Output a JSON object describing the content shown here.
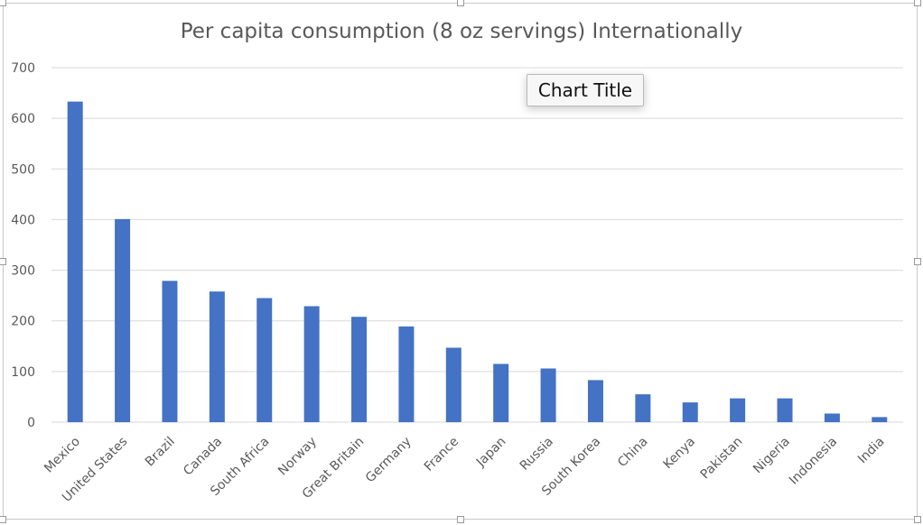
{
  "chart_data": {
    "type": "bar",
    "title": "Per capita consumption (8 oz servings) Internationally",
    "categories": [
      "Mexico",
      "United States",
      "Brazil",
      "Canada",
      "South Africa",
      "Norway",
      "Great Britain",
      "Germany",
      "France",
      "Japan",
      "Russia",
      "South Korea",
      "China",
      "Kenya",
      "Pakistan",
      "Nigeria",
      "Indonesia",
      "India"
    ],
    "values": [
      633,
      401,
      279,
      258,
      245,
      229,
      208,
      189,
      147,
      115,
      106,
      83,
      55,
      39,
      47,
      47,
      17,
      10
    ],
    "ylim": [
      0,
      700
    ],
    "yticks": [
      0,
      100,
      200,
      300,
      400,
      500,
      600,
      700
    ],
    "xlabel": "",
    "ylabel": "",
    "grid": true,
    "bar_color": "#4472c4",
    "grid_color": "#d9d9d9"
  },
  "tooltip": {
    "text": "Chart Title"
  }
}
